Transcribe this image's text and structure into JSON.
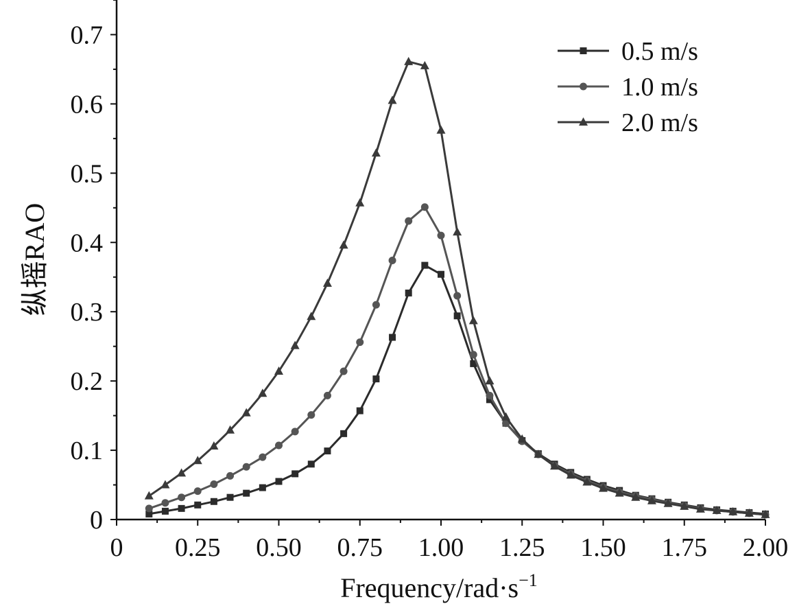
{
  "chart_data": {
    "type": "line",
    "title": "",
    "xlabel": "Frequency/rad·s",
    "xlabel_superscript": "−1",
    "ylabel": "纵摇RAO",
    "xlim": [
      0,
      2.0
    ],
    "ylim": [
      0,
      0.75
    ],
    "xticks": [
      "0",
      "0.25",
      "0.50",
      "0.75",
      "1.00",
      "1.25",
      "1.50",
      "1.75",
      "2.00"
    ],
    "yticks": [
      "0",
      "0.1",
      "0.2",
      "0.3",
      "0.4",
      "0.5",
      "0.6",
      "0.7"
    ],
    "grid": false,
    "legend_position": "top-right",
    "x": [
      0.1,
      0.15,
      0.2,
      0.25,
      0.3,
      0.35,
      0.4,
      0.45,
      0.5,
      0.55,
      0.6,
      0.65,
      0.7,
      0.75,
      0.8,
      0.85,
      0.9,
      0.95,
      1.0,
      1.05,
      1.1,
      1.15,
      1.2,
      1.25,
      1.3,
      1.35,
      1.4,
      1.45,
      1.5,
      1.55,
      1.6,
      1.65,
      1.7,
      1.75,
      1.8,
      1.85,
      1.9,
      1.95,
      2.0
    ],
    "series": [
      {
        "name": "0.5 m/s",
        "marker": "square",
        "color": "#2b2b2b",
        "values": [
          0.008,
          0.012,
          0.016,
          0.021,
          0.026,
          0.032,
          0.038,
          0.046,
          0.055,
          0.066,
          0.08,
          0.099,
          0.124,
          0.157,
          0.203,
          0.263,
          0.327,
          0.367,
          0.354,
          0.294,
          0.225,
          0.173,
          0.139,
          0.114,
          0.095,
          0.08,
          0.068,
          0.058,
          0.049,
          0.042,
          0.035,
          0.03,
          0.025,
          0.021,
          0.017,
          0.014,
          0.012,
          0.01,
          0.008
        ]
      },
      {
        "name": "1.0 m/s",
        "marker": "circle",
        "color": "#555555",
        "values": [
          0.016,
          0.024,
          0.032,
          0.041,
          0.051,
          0.063,
          0.076,
          0.09,
          0.107,
          0.127,
          0.151,
          0.179,
          0.214,
          0.256,
          0.31,
          0.374,
          0.431,
          0.451,
          0.41,
          0.323,
          0.238,
          0.179,
          0.139,
          0.113,
          0.094,
          0.078,
          0.066,
          0.056,
          0.047,
          0.04,
          0.034,
          0.029,
          0.024,
          0.02,
          0.016,
          0.013,
          0.011,
          0.009,
          0.007
        ]
      },
      {
        "name": "2.0 m/s",
        "marker": "triangle",
        "color": "#3a3a3a",
        "values": [
          0.034,
          0.05,
          0.067,
          0.085,
          0.106,
          0.129,
          0.154,
          0.182,
          0.214,
          0.251,
          0.293,
          0.341,
          0.396,
          0.457,
          0.529,
          0.605,
          0.661,
          0.655,
          0.562,
          0.415,
          0.287,
          0.2,
          0.148,
          0.116,
          0.094,
          0.077,
          0.064,
          0.054,
          0.045,
          0.038,
          0.032,
          0.027,
          0.023,
          0.019,
          0.015,
          0.013,
          0.011,
          0.009,
          0.007
        ]
      }
    ]
  }
}
